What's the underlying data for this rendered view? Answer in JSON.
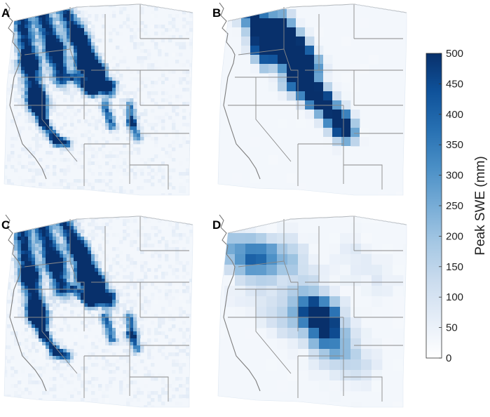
{
  "panels": [
    {
      "label": "A",
      "style": "fine",
      "seed": 3
    },
    {
      "label": "B",
      "style": "coarse-high",
      "seed": 7
    },
    {
      "label": "C",
      "style": "fine",
      "seed": 11
    },
    {
      "label": "D",
      "style": "coarse-low",
      "seed": 19
    }
  ],
  "colorbar": {
    "title": "Peak SWE (mm)",
    "min": 0,
    "max": 500,
    "ticks": [
      0,
      50,
      100,
      150,
      200,
      250,
      300,
      350,
      400,
      450,
      500
    ],
    "colors": [
      "#ffffff",
      "#e6eef8",
      "#cbdcee",
      "#a6c8e4",
      "#77acd6",
      "#4a8fc6",
      "#2770b2",
      "#0f529a",
      "#08306b"
    ]
  },
  "colors": {
    "land_background": "#f3f7fc",
    "state_borders": "#8a8a8a",
    "coastline": "#7d7d7d"
  }
}
